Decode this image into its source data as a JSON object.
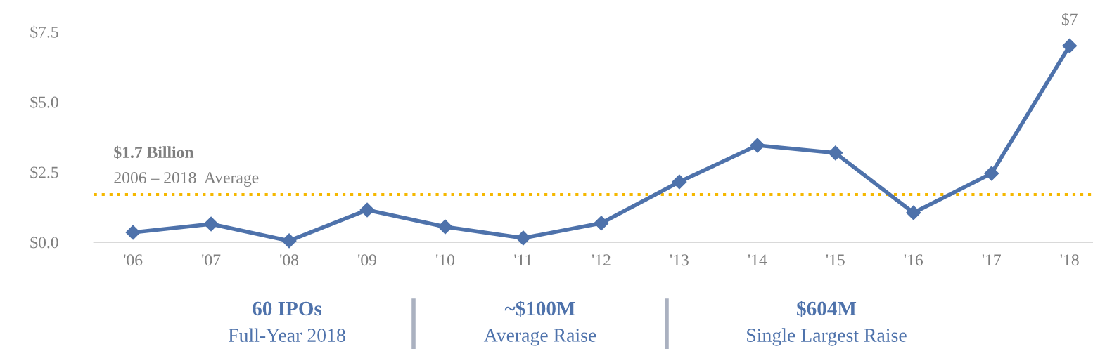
{
  "chart_data": {
    "type": "line",
    "categories": [
      "'06",
      "'07",
      "'08",
      "'09",
      "'10",
      "'11",
      "'12",
      "'13",
      "'14",
      "'15",
      "'16",
      "'17",
      "'18"
    ],
    "series": [
      {
        "color": "#4e72ab",
        "values": [
          0.35,
          0.65,
          0.05,
          1.15,
          0.55,
          0.15,
          0.68,
          2.15,
          3.45,
          3.18,
          1.05,
          2.45,
          7.0
        ],
        "value_labels": [
          null,
          null,
          null,
          null,
          null,
          null,
          null,
          null,
          null,
          null,
          null,
          null,
          "$7"
        ]
      }
    ],
    "ylim": [
      0,
      7.5
    ],
    "yticks": [
      {
        "value": 0,
        "label": "$0.0"
      },
      {
        "value": 2.5,
        "label": "$2.5"
      },
      {
        "value": 5,
        "label": "$5.0"
      },
      {
        "value": 7.5,
        "label": "$7.5"
      }
    ],
    "ref_lines": [
      {
        "axis": "y",
        "value": 1.7,
        "label": "$1.7 Billion",
        "color": "#f5b800",
        "line_style": "dotted"
      }
    ],
    "annotations": [
      "2006 – 2018  Average",
      "60 IPOs",
      "Full-Year 2018",
      "~$100M",
      "Average Raise",
      "$604M",
      "Single Largest Raise"
    ],
    "marker": "diamond",
    "line_style": "solid",
    "grid": false,
    "legend": false
  }
}
